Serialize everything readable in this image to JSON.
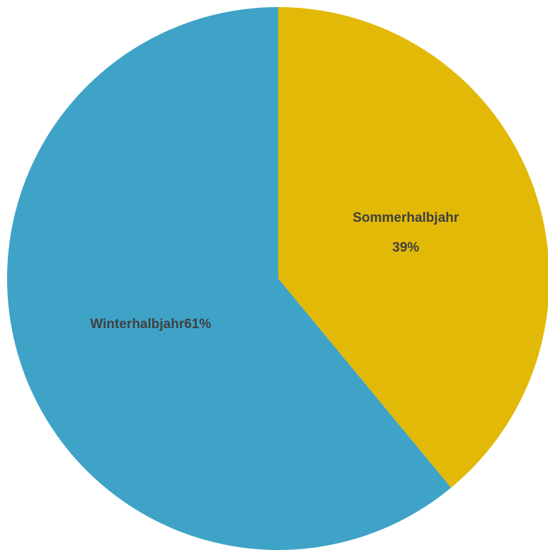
{
  "chart_data": {
    "type": "pie",
    "categories": [
      "Sommerhalbjahr",
      "Winterhalbjahr"
    ],
    "values": [
      39,
      61
    ],
    "value_labels": [
      "39%",
      "61%"
    ],
    "colors": [
      "#e2b907",
      "#3fa3c8"
    ]
  }
}
